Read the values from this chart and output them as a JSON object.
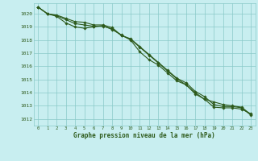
{
  "title": "Graphe pression niveau de la mer (hPa)",
  "bg_color": "#c8eef0",
  "grid_color": "#89c9c9",
  "line_color": "#2d5a1b",
  "x_ticks": [
    0,
    1,
    2,
    3,
    4,
    5,
    6,
    7,
    8,
    9,
    10,
    11,
    12,
    13,
    14,
    15,
    16,
    17,
    18,
    19,
    20,
    21,
    22,
    23
  ],
  "yticks": [
    1012,
    1013,
    1014,
    1015,
    1016,
    1017,
    1018,
    1019,
    1020
  ],
  "ylim": [
    1011.5,
    1020.8
  ],
  "series1": [
    1020.5,
    1020.0,
    1019.8,
    1019.3,
    1019.0,
    1018.9,
    1019.0,
    1019.1,
    1018.8,
    1018.4,
    1018.0,
    1017.1,
    1016.5,
    1016.1,
    1015.5,
    1014.9,
    1014.6,
    1013.9,
    1013.5,
    1012.9,
    1012.85,
    1012.85,
    1012.75,
    1012.4
  ],
  "series2": [
    1020.5,
    1020.0,
    1019.85,
    1019.55,
    1019.25,
    1019.15,
    1019.05,
    1019.05,
    1018.85,
    1018.35,
    1018.1,
    1017.5,
    1016.9,
    1016.3,
    1015.7,
    1015.1,
    1014.75,
    1014.1,
    1013.7,
    1013.1,
    1012.95,
    1012.95,
    1012.85,
    1012.3
  ],
  "series3": [
    1020.5,
    1020.0,
    1019.9,
    1019.65,
    1019.4,
    1019.35,
    1019.15,
    1019.15,
    1018.95,
    1018.35,
    1018.05,
    1017.45,
    1016.85,
    1016.25,
    1015.65,
    1015.05,
    1014.6,
    1014.0,
    1013.5,
    1013.3,
    1013.1,
    1013.0,
    1012.9,
    1012.35
  ]
}
